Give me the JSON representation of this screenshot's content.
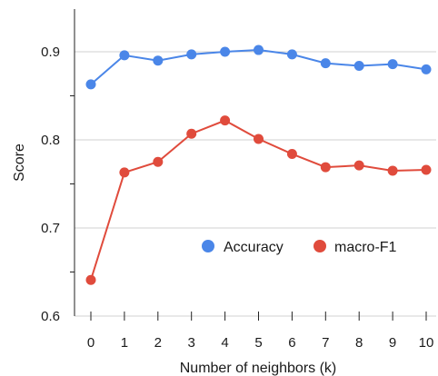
{
  "chart_data": {
    "type": "line",
    "xlabel": "Number of neighbors (k)",
    "ylabel": "Score",
    "x": [
      0,
      1,
      2,
      3,
      4,
      5,
      6,
      7,
      8,
      9,
      10
    ],
    "xlim": [
      0,
      10
    ],
    "ylim": [
      0.6,
      0.95
    ],
    "yticks": [
      "0.6",
      "0.7",
      "0.8",
      "0.9"
    ],
    "xticks": [
      "0",
      "1",
      "2",
      "3",
      "4",
      "5",
      "6",
      "7",
      "8",
      "9",
      "10"
    ],
    "grid": "horizontal",
    "legend_position": "bottom-right",
    "series": [
      {
        "name": "Accuracy",
        "color": "#4a86e8",
        "values": [
          0.863,
          0.896,
          0.89,
          0.897,
          0.9,
          0.902,
          0.897,
          0.887,
          0.884,
          0.886,
          0.88
        ]
      },
      {
        "name": "macro-F1",
        "color": "#e04b3c",
        "values": [
          0.641,
          0.763,
          0.775,
          0.807,
          0.822,
          0.801,
          0.784,
          0.769,
          0.771,
          0.765,
          0.766
        ]
      }
    ]
  }
}
